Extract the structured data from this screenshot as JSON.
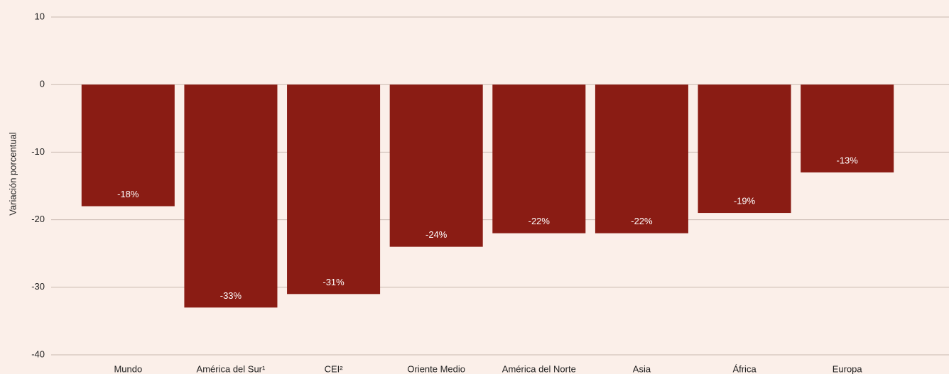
{
  "chart_data": {
    "type": "bar",
    "y_label": "Variación porcentual",
    "categories": [
      "Mundo",
      "América del Sur¹",
      "CEI²",
      "Oriente Medio",
      "América del Norte",
      "Asia",
      "África",
      "Europa"
    ],
    "values": [
      -18,
      -33,
      -31,
      -24,
      -22,
      -22,
      -19,
      -13
    ],
    "value_labels": [
      "-18%",
      "-33%",
      "-31%",
      "-24%",
      "-22%",
      "-22%",
      "-19%",
      "-13%"
    ],
    "color": "#8a1c14",
    "ylim": [
      -40,
      10
    ],
    "yticks": [
      -40,
      -30,
      -20,
      -10,
      0,
      10
    ],
    "grid": true
  }
}
